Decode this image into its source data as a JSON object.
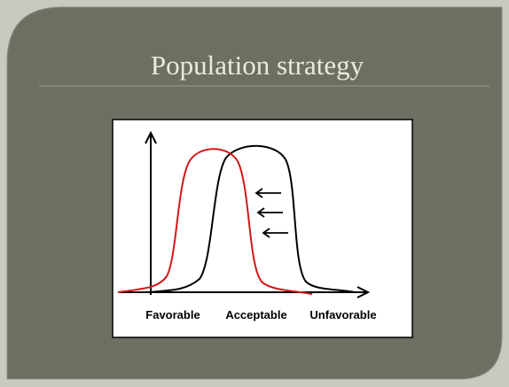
{
  "slide": {
    "title": "Population strategy",
    "diagram": {
      "x_labels": [
        "Favorable",
        "Acceptable",
        "Unfavorable"
      ]
    }
  }
}
